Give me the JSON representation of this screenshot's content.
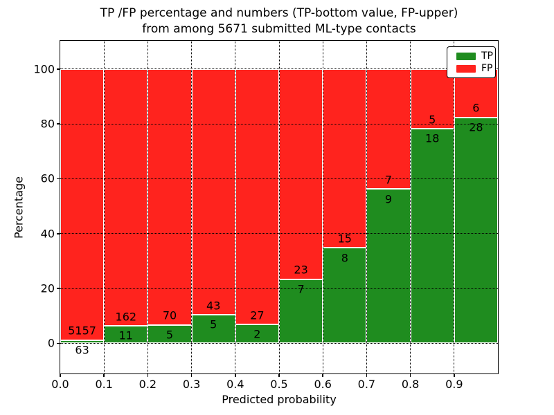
{
  "title": {
    "line1": "TP /FP percentage and numbers (TP-bottom value, FP-upper)",
    "line2": "from among 5671 submitted ML-type contacts"
  },
  "axes": {
    "xlabel": "Predicted probability",
    "ylabel": "Percentage",
    "x_tick_labels": [
      "0.0",
      "0.1",
      "0.2",
      "0.3",
      "0.4",
      "0.5",
      "0.6",
      "0.7",
      "0.8",
      "0.9"
    ],
    "x_tick_values": [
      0.0,
      0.1,
      0.2,
      0.3,
      0.4,
      0.5,
      0.6,
      0.7,
      0.8,
      0.9
    ],
    "y_tick_labels": [
      "0",
      "20",
      "40",
      "60",
      "80",
      "100"
    ],
    "y_tick_values": [
      0,
      20,
      40,
      60,
      80,
      100
    ]
  },
  "legend": {
    "items": [
      {
        "label": "TP",
        "color": "#1f8c1f"
      },
      {
        "label": "FP",
        "color": "#ff231e"
      }
    ]
  },
  "colors": {
    "tp_green": "#1f8c1f",
    "fp_red": "#ff231e",
    "grid": "#000000",
    "background": "#ffffff"
  },
  "chart_data": {
    "type": "bar",
    "stacked": true,
    "normalized_to_percent": true,
    "title": "TP /FP percentage and numbers (TP-bottom value, FP-upper) from among 5671 submitted ML-type contacts",
    "xlabel": "Predicted probability",
    "ylabel": "Percentage",
    "total_contacts": 5671,
    "bin_edges": [
      0.0,
      0.1,
      0.2,
      0.3,
      0.4,
      0.5,
      0.6,
      0.7,
      0.8,
      0.9,
      1.0
    ],
    "categories": [
      "0.0-0.1",
      "0.1-0.2",
      "0.2-0.3",
      "0.3-0.4",
      "0.4-0.5",
      "0.5-0.6",
      "0.6-0.7",
      "0.7-0.8",
      "0.8-0.9",
      "0.9-1.0"
    ],
    "series": [
      {
        "name": "TP",
        "color": "#1f8c1f",
        "counts": [
          63,
          11,
          5,
          5,
          2,
          7,
          8,
          9,
          18,
          28
        ]
      },
      {
        "name": "FP",
        "color": "#ff231e",
        "counts": [
          5157,
          162,
          70,
          43,
          27,
          23,
          15,
          7,
          5,
          6
        ]
      }
    ],
    "tp_percent_approx": [
      1.2,
      6.4,
      6.7,
      10.4,
      6.9,
      23.3,
      34.8,
      56.2,
      78.3,
      82.4
    ],
    "xlim": [
      0.0,
      1.0
    ],
    "ylim": [
      -11,
      110.3
    ],
    "grid": true,
    "grid_style": "dotted",
    "legend_position": "upper right"
  }
}
